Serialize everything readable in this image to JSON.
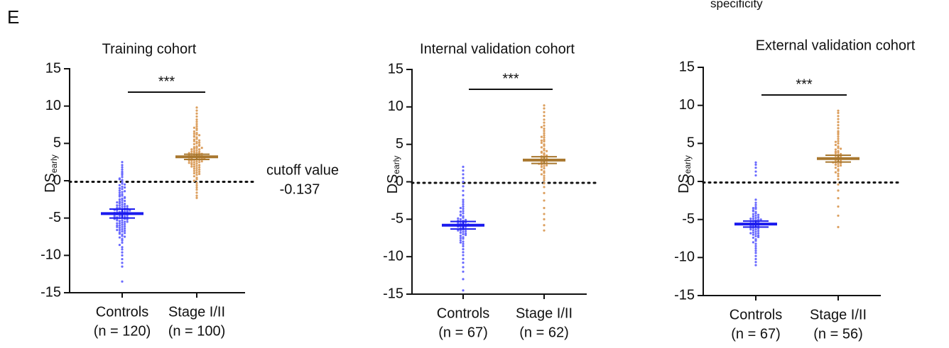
{
  "panel": "E",
  "caption_fragment": "specificity",
  "chart_data": [
    {
      "type": "dot",
      "title": "Training cohort",
      "ylabel": "DS",
      "ylabel_sub": "early",
      "ylim": [
        -15,
        15
      ],
      "yticks": [
        -15,
        -10,
        -5,
        0,
        5,
        10,
        15
      ],
      "cutoff": -0.137,
      "cutoff_annotation": "cutoff value",
      "significance": "***",
      "groups": [
        {
          "name": "Controls",
          "n_label": "(n = 120)",
          "color": "#6a6aff",
          "mean_color": "#1a1aee",
          "mean": -4.4,
          "sem": 0.6,
          "values": [
            2.5,
            2.1,
            1.8,
            1.5,
            1.2,
            1.0,
            0.8,
            0.5,
            0.3,
            0.1,
            -0.2,
            -0.4,
            -0.6,
            -0.8,
            -1.0,
            -1.1,
            -1.3,
            -1.5,
            -1.6,
            -1.8,
            -2.0,
            -2.1,
            -2.2,
            -2.4,
            -2.5,
            -2.6,
            -2.8,
            -2.9,
            -3.0,
            -3.1,
            -3.2,
            -3.3,
            -3.4,
            -3.5,
            -3.6,
            -3.7,
            -3.8,
            -3.8,
            -3.9,
            -4.0,
            -4.0,
            -4.1,
            -4.2,
            -4.2,
            -4.3,
            -4.4,
            -4.4,
            -4.5,
            -4.5,
            -4.6,
            -4.7,
            -4.7,
            -4.8,
            -4.9,
            -5.0,
            -5.0,
            -5.1,
            -5.2,
            -5.2,
            -5.3,
            -5.4,
            -5.5,
            -5.6,
            -5.7,
            -5.8,
            -5.9,
            -6.0,
            -6.1,
            -6.2,
            -6.3,
            -6.4,
            -6.5,
            -6.6,
            -6.7,
            -6.8,
            -6.9,
            -7.0,
            -7.2,
            -7.4,
            -7.6,
            -7.8,
            -8.0,
            -8.3,
            -8.6,
            -8.9,
            -9.2,
            -9.6,
            -10.0,
            -10.5,
            -11.0,
            -11.5,
            -13.5,
            -3.3,
            -3.6,
            -4.1,
            -4.6,
            -4.9,
            -5.3,
            -5.7,
            -3.9,
            -2.7,
            -2.3,
            -1.9,
            -1.4,
            -0.9,
            -0.5,
            0.2,
            -6.2,
            -6.6,
            -7.1,
            -7.5,
            -4.3,
            -4.8,
            -5.5,
            -3.4,
            -2.9,
            -6.0,
            -5.1,
            -4.0,
            -3.7
          ]
        },
        {
          "name": "Stage I/II",
          "n_label": "(n = 100)",
          "color": "#dca060",
          "mean_color": "#a8772e",
          "mean": 3.2,
          "sem": 0.35,
          "values": [
            9.8,
            9.4,
            9.0,
            8.6,
            8.2,
            7.9,
            7.6,
            7.3,
            7.0,
            6.8,
            6.6,
            6.4,
            6.2,
            6.0,
            5.8,
            5.6,
            5.5,
            5.4,
            5.2,
            5.0,
            4.9,
            4.8,
            4.6,
            4.5,
            4.4,
            4.3,
            4.2,
            4.1,
            4.0,
            3.9,
            3.8,
            3.8,
            3.7,
            3.6,
            3.5,
            3.5,
            3.4,
            3.3,
            3.3,
            3.2,
            3.2,
            3.1,
            3.0,
            3.0,
            2.9,
            2.8,
            2.8,
            2.7,
            2.6,
            2.5,
            2.5,
            2.4,
            2.3,
            2.2,
            2.1,
            2.0,
            1.9,
            1.8,
            1.7,
            1.6,
            1.5,
            1.4,
            1.3,
            1.2,
            1.1,
            1.0,
            0.9,
            0.8,
            0.6,
            0.4,
            0.2,
            0.0,
            -0.3,
            -0.6,
            -0.9,
            -1.2,
            -1.6,
            -2.0,
            -2.3,
            4.7,
            5.3,
            5.9,
            6.3,
            3.6,
            3.4,
            3.1,
            2.9,
            2.6,
            2.2,
            1.9,
            4.2,
            3.9,
            3.7,
            2.4,
            5.1,
            4.4,
            3.0,
            2.7,
            6.1,
            7.1
          ]
        }
      ]
    },
    {
      "type": "dot",
      "title": "Internal validation cohort",
      "ylabel": "DS",
      "ylabel_sub": "early",
      "ylim": [
        -15,
        15
      ],
      "yticks": [
        -15,
        -10,
        -5,
        0,
        5,
        10,
        15
      ],
      "cutoff": -0.137,
      "significance": "***",
      "groups": [
        {
          "name": "Controls",
          "n_label": "(n = 67)",
          "color": "#6a6aff",
          "mean_color": "#1a1aee",
          "mean": -5.8,
          "sem": 0.5,
          "values": [
            2.0,
            1.5,
            1.0,
            0.5,
            0.0,
            -0.6,
            -1.2,
            -1.8,
            -2.4,
            -3.0,
            -3.3,
            -3.6,
            -3.9,
            -4.2,
            -4.4,
            -4.6,
            -4.8,
            -5.0,
            -5.1,
            -5.2,
            -5.3,
            -5.4,
            -5.5,
            -5.6,
            -5.7,
            -5.8,
            -5.9,
            -6.0,
            -6.1,
            -6.2,
            -6.3,
            -6.4,
            -6.5,
            -6.6,
            -6.7,
            -6.8,
            -7.0,
            -7.2,
            -7.4,
            -7.6,
            -7.8,
            -8.0,
            -8.3,
            -8.6,
            -9.0,
            -9.4,
            -9.8,
            -10.3,
            -10.8,
            -11.4,
            -12.0,
            -13.0,
            -14.5,
            -4.0,
            -4.5,
            -5.5,
            -6.0,
            -6.5,
            -3.5,
            -2.7,
            -7.1,
            -7.5,
            -8.1,
            -5.2,
            -4.9,
            -6.9,
            -5.7
          ]
        },
        {
          "name": "Stage I/II",
          "n_label": "(n = 62)",
          "color": "#dca060",
          "mean_color": "#a8772e",
          "mean": 2.9,
          "sem": 0.45,
          "values": [
            10.2,
            9.8,
            9.3,
            8.8,
            8.3,
            7.9,
            7.5,
            7.1,
            6.8,
            6.5,
            6.2,
            5.9,
            5.6,
            5.4,
            5.2,
            5.0,
            4.8,
            4.6,
            4.4,
            4.2,
            4.0,
            3.8,
            3.6,
            3.4,
            3.3,
            3.2,
            3.1,
            3.0,
            2.9,
            2.8,
            2.7,
            2.6,
            2.5,
            2.4,
            2.3,
            2.2,
            2.1,
            2.0,
            1.8,
            1.6,
            1.4,
            1.2,
            1.0,
            0.8,
            0.5,
            0.2,
            -0.2,
            -0.7,
            -1.5,
            -2.5,
            -3.5,
            -4.3,
            -5.0,
            -5.8,
            -6.5,
            3.5,
            3.9,
            2.4,
            4.1,
            5.5,
            6.0,
            7.3
          ]
        }
      ]
    },
    {
      "type": "dot",
      "title": "External validation cohort",
      "ylabel": "DS",
      "ylabel_sub": "early",
      "ylim": [
        -15,
        15
      ],
      "yticks": [
        -15,
        -10,
        -5,
        0,
        5,
        10,
        15
      ],
      "cutoff": -0.137,
      "significance": "***",
      "groups": [
        {
          "name": "Controls",
          "n_label": "(n = 67)",
          "color": "#6a6aff",
          "mean_color": "#1a1aee",
          "mean": -5.6,
          "sem": 0.4,
          "values": [
            2.5,
            2.2,
            1.8,
            1.3,
            0.8,
            -2.4,
            -2.8,
            -3.1,
            -3.4,
            -3.6,
            -3.8,
            -4.0,
            -4.2,
            -4.3,
            -4.5,
            -4.6,
            -4.7,
            -4.8,
            -4.9,
            -5.0,
            -5.1,
            -5.2,
            -5.3,
            -5.4,
            -5.5,
            -5.6,
            -5.7,
            -5.8,
            -5.9,
            -6.0,
            -6.1,
            -6.2,
            -6.3,
            -6.4,
            -6.5,
            -6.6,
            -6.7,
            -6.8,
            -6.9,
            -7.0,
            -7.1,
            -7.2,
            -7.4,
            -7.6,
            -7.8,
            -8.0,
            -8.2,
            -8.5,
            -8.8,
            -9.1,
            -9.4,
            -9.8,
            -10.2,
            -10.6,
            -11.0,
            -4.4,
            -5.2,
            -5.8,
            -6.3,
            -3.9,
            -6.8,
            -7.3,
            -5.5,
            -4.9,
            -6.1,
            -5.0,
            -3.5
          ]
        },
        {
          "name": "Stage I/II",
          "n_label": "(n = 56)",
          "color": "#dca060",
          "mean_color": "#a8772e",
          "mean": 3.0,
          "sem": 0.45,
          "values": [
            9.3,
            9.0,
            8.6,
            8.2,
            7.8,
            7.4,
            7.0,
            6.6,
            6.2,
            5.9,
            5.6,
            5.3,
            5.0,
            4.8,
            4.6,
            4.4,
            4.2,
            4.0,
            3.8,
            3.7,
            3.6,
            3.5,
            3.4,
            3.3,
            3.2,
            3.1,
            3.0,
            2.9,
            2.8,
            2.7,
            2.6,
            2.5,
            2.4,
            2.3,
            2.2,
            2.0,
            1.8,
            1.6,
            1.4,
            1.2,
            1.0,
            0.7,
            0.3,
            -0.4,
            -1.2,
            -2.2,
            -3.3,
            -4.5,
            -6.0,
            3.9,
            4.3,
            2.5,
            3.0,
            5.2,
            6.4,
            2.1
          ]
        }
      ]
    }
  ]
}
